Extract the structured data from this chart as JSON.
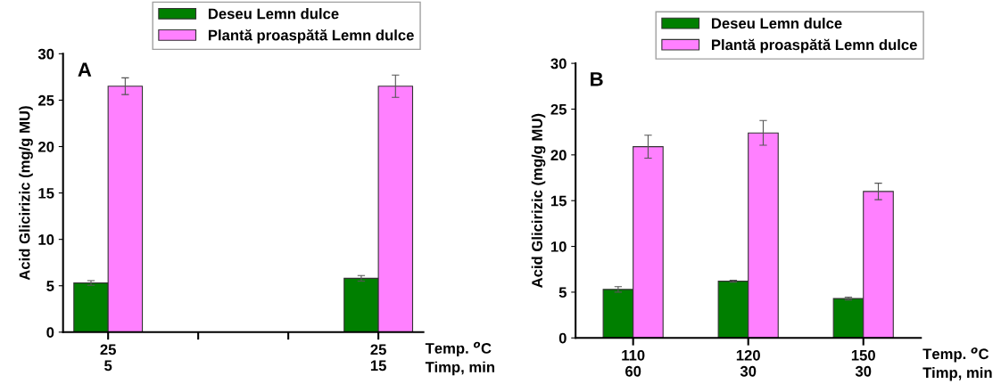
{
  "chart_data": [
    {
      "type": "bar",
      "title": "A",
      "categories": [
        "25\n5",
        null,
        null,
        "25\n15"
      ],
      "xlabel": "Temp. $^{o}$C\nTimp, min",
      "ylabel": "Acid Glicirizic (mg/g MU)",
      "series": [
        {
          "name": "Deseu Lemn dulce",
          "color": "#007f00",
          "values": [
            5.3,
            null,
            null,
            5.8
          ],
          "errors": [
            0.25,
            null,
            null,
            0.3
          ]
        },
        {
          "name": "Plantă proaspătă Lemn dulce",
          "color": "#ff80ff",
          "values": [
            26.5,
            null,
            null,
            26.5
          ],
          "errors": [
            0.9,
            null,
            null,
            1.2
          ]
        }
      ],
      "ylim": [
        0,
        30
      ],
      "yticks": [
        0,
        5,
        10,
        15,
        20,
        25,
        30
      ],
      "legend": "top",
      "grid": false
    },
    {
      "type": "bar",
      "title": "B",
      "categories": [
        "110\n60",
        "120\n30",
        "150\n30"
      ],
      "xlabel": "Temp. $^{o}$C\nTimp, min",
      "ylabel": "Acid Glicirizic (mg/g MU)",
      "series": [
        {
          "name": "Deseu Lemn dulce",
          "color": "#007f00",
          "values": [
            5.3,
            6.2,
            4.3
          ],
          "errors": [
            0.3,
            0.1,
            0.15
          ]
        },
        {
          "name": "Plantă proaspătă Lemn dulce",
          "color": "#ff80ff",
          "values": [
            20.9,
            22.4,
            16.0
          ],
          "errors": [
            1.25,
            1.35,
            0.9
          ]
        }
      ],
      "ylim": [
        0,
        30
      ],
      "yticks": [
        0,
        5,
        10,
        15,
        20,
        25,
        30
      ],
      "legend": "top",
      "grid": false
    }
  ]
}
